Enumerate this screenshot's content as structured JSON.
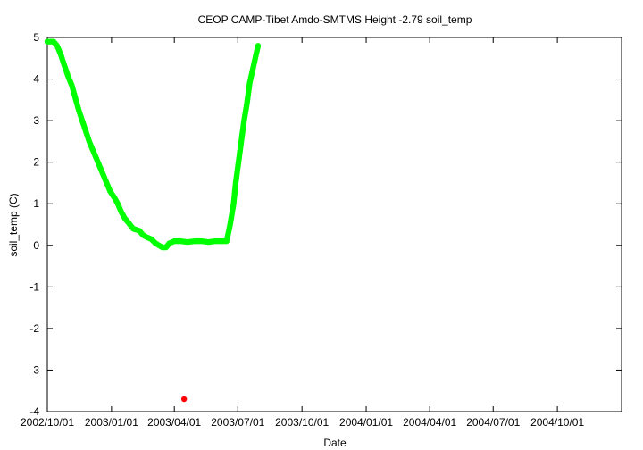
{
  "chart_data": {
    "type": "scatter",
    "title": "CEOP CAMP-Tibet Amdo-SMTMS Height -2.79 soil_temp",
    "xlabel": "Date",
    "ylabel": "soil_temp (C)",
    "ylim": [
      -4,
      5
    ],
    "yticks": [
      -4,
      -3,
      -2,
      -1,
      0,
      1,
      2,
      3,
      4,
      5
    ],
    "xlim": [
      "2002-10-01",
      "2005-01-01"
    ],
    "xticks": [
      {
        "date": "2002-10-01",
        "label": "2002/10/01"
      },
      {
        "date": "2003-01-01",
        "label": "2003/01/01"
      },
      {
        "date": "2003-04-01",
        "label": "2003/04/01"
      },
      {
        "date": "2003-07-01",
        "label": "2003/07/01"
      },
      {
        "date": "2003-10-01",
        "label": "2003/10/01"
      },
      {
        "date": "2004-01-01",
        "label": "2004/01/01"
      },
      {
        "date": "2004-04-01",
        "label": "2004/04/01"
      },
      {
        "date": "2004-07-01",
        "label": "2004/07/01"
      },
      {
        "date": "2004-10-01",
        "label": "2004/10/01"
      }
    ],
    "grid": false,
    "series": [
      {
        "color": "#00ff00",
        "points": [
          [
            "2002-10-01",
            4.9
          ],
          [
            "2002-10-10",
            4.9
          ],
          [
            "2002-10-15",
            4.8
          ],
          [
            "2002-10-20",
            4.6
          ],
          [
            "2002-10-25",
            4.35
          ],
          [
            "2002-10-30",
            4.1
          ],
          [
            "2002-11-05",
            3.85
          ],
          [
            "2002-11-10",
            3.55
          ],
          [
            "2002-11-15",
            3.25
          ],
          [
            "2002-11-20",
            3.0
          ],
          [
            "2002-11-25",
            2.75
          ],
          [
            "2002-11-30",
            2.5
          ],
          [
            "2002-12-05",
            2.3
          ],
          [
            "2002-12-10",
            2.1
          ],
          [
            "2002-12-15",
            1.9
          ],
          [
            "2002-12-20",
            1.7
          ],
          [
            "2002-12-25",
            1.5
          ],
          [
            "2002-12-30",
            1.3
          ],
          [
            "2003-01-05",
            1.15
          ],
          [
            "2003-01-10",
            1.0
          ],
          [
            "2003-01-15",
            0.8
          ],
          [
            "2003-01-20",
            0.65
          ],
          [
            "2003-01-25",
            0.55
          ],
          [
            "2003-02-01",
            0.4
          ],
          [
            "2003-02-10",
            0.35
          ],
          [
            "2003-02-15",
            0.25
          ],
          [
            "2003-02-20",
            0.2
          ],
          [
            "2003-02-27",
            0.15
          ],
          [
            "2003-03-05",
            0.05
          ],
          [
            "2003-03-10",
            0.0
          ],
          [
            "2003-03-15",
            -0.05
          ],
          [
            "2003-03-20",
            -0.05
          ],
          [
            "2003-03-25",
            0.05
          ],
          [
            "2003-04-01",
            0.1
          ],
          [
            "2003-04-10",
            0.1
          ],
          [
            "2003-04-20",
            0.08
          ],
          [
            "2003-05-01",
            0.1
          ],
          [
            "2003-05-10",
            0.1
          ],
          [
            "2003-05-20",
            0.08
          ],
          [
            "2003-05-30",
            0.1
          ],
          [
            "2003-06-05",
            0.1
          ],
          [
            "2003-06-15",
            0.1
          ],
          [
            "2003-06-20",
            0.5
          ],
          [
            "2003-06-25",
            1.0
          ],
          [
            "2003-06-28",
            1.5
          ],
          [
            "2003-07-02",
            2.0
          ],
          [
            "2003-07-06",
            2.5
          ],
          [
            "2003-07-10",
            3.0
          ],
          [
            "2003-07-14",
            3.4
          ],
          [
            "2003-07-18",
            3.9
          ],
          [
            "2003-07-22",
            4.2
          ],
          [
            "2003-07-26",
            4.5
          ],
          [
            "2003-07-30",
            4.8
          ]
        ]
      },
      {
        "color": "#ff0000",
        "points": [
          [
            "2003-04-15",
            -3.7
          ]
        ]
      }
    ]
  }
}
